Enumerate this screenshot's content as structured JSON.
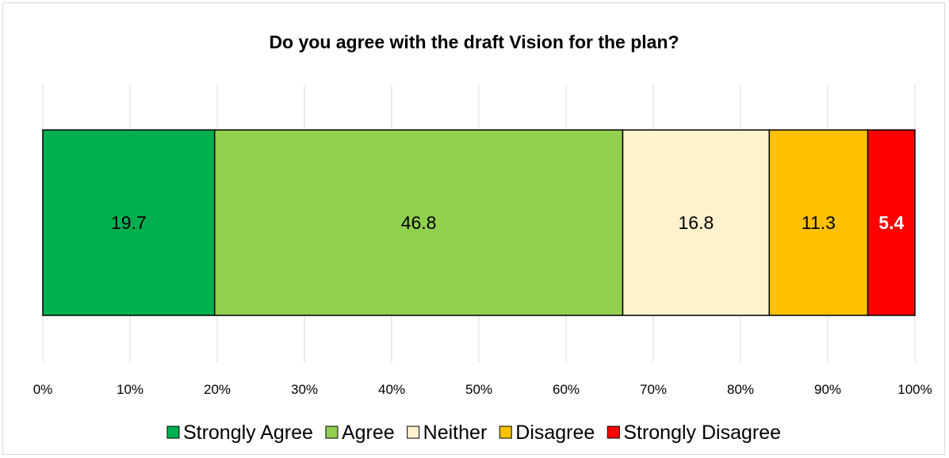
{
  "chart_data": {
    "type": "bar",
    "orientation": "horizontal",
    "stacked": true,
    "title": "Do you agree with the draft Vision for the plan?",
    "categories": [
      ""
    ],
    "series": [
      {
        "name": "Strongly Agree",
        "values": [
          19.7
        ],
        "label": "19.7",
        "color": "#00b050",
        "label_color": "#000000",
        "label_bold": false
      },
      {
        "name": "Agree",
        "values": [
          46.8
        ],
        "label": "46.8",
        "color": "#92d050",
        "label_color": "#000000",
        "label_bold": false
      },
      {
        "name": "Neither",
        "values": [
          16.8
        ],
        "label": "16.8",
        "color": "#fff2cc",
        "label_color": "#000000",
        "label_bold": false
      },
      {
        "name": "Disagree",
        "values": [
          11.3
        ],
        "label": "11.3",
        "color": "#ffc000",
        "label_color": "#000000",
        "label_bold": false
      },
      {
        "name": "Strongly Disagree",
        "values": [
          5.4
        ],
        "label": "5.4",
        "color": "#ff0000",
        "label_color": "#ffffff",
        "label_bold": true
      }
    ],
    "xlim": [
      0,
      100
    ],
    "x_ticks": [
      "0%",
      "10%",
      "20%",
      "30%",
      "40%",
      "50%",
      "60%",
      "70%",
      "80%",
      "90%",
      "100%"
    ],
    "grid": true,
    "legend_position": "bottom"
  }
}
